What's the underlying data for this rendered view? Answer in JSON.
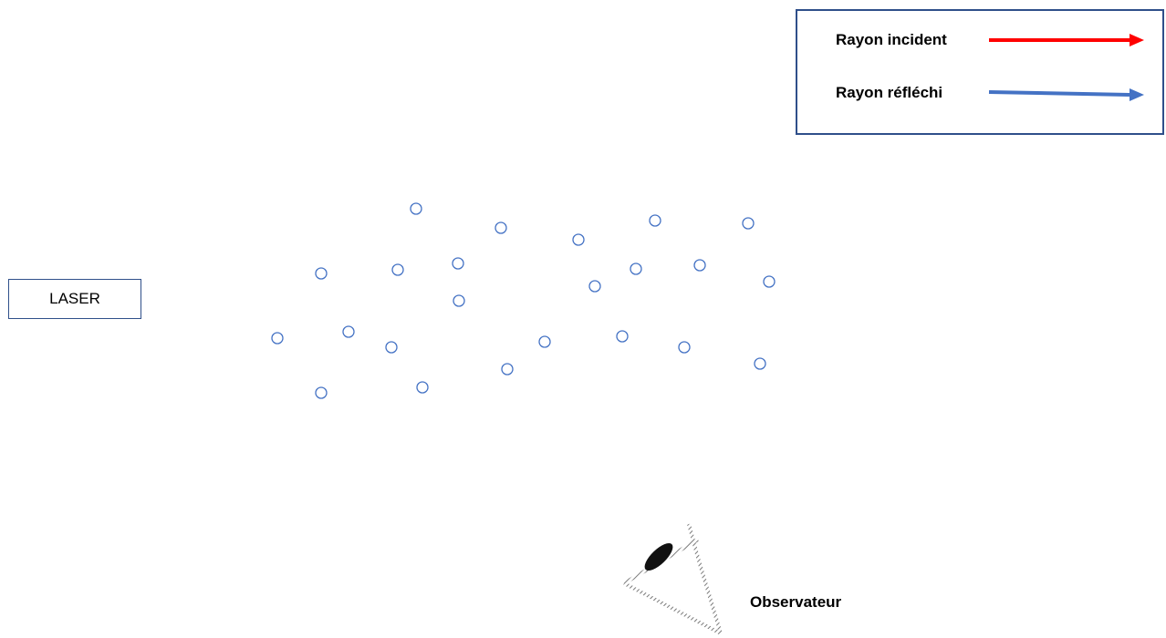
{
  "legend": {
    "incident_label": "Rayon incident",
    "incident_color": "#ff0000",
    "reflected_label": "Rayon réfléchi",
    "reflected_color": "#4472c4",
    "border_color": "#2f4f8a"
  },
  "laser": {
    "label": "LASER"
  },
  "particles": {
    "count": 25,
    "shape": "small-circle",
    "stroke_color": "#4472c4"
  },
  "observer": {
    "label": "Observateur",
    "icon": "eye-icon"
  }
}
